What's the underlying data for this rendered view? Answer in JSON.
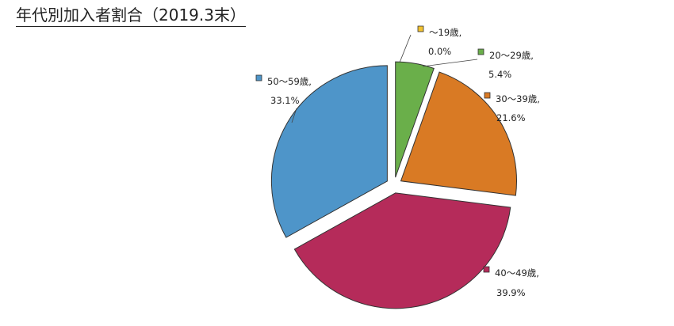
{
  "title": "年代別加入者割合（2019.3末）",
  "chart_data": {
    "type": "pie",
    "title": "年代別加入者割合（2019.3末）",
    "slices": [
      {
        "label": "～19歳",
        "value": 0.0,
        "value_label": "0.0%",
        "color": "#F2C230"
      },
      {
        "label": "20～29歳",
        "value": 5.4,
        "value_label": "5.4%",
        "color": "#6AAF4A"
      },
      {
        "label": "30～39歳",
        "value": 21.6,
        "value_label": "21.6%",
        "color": "#D97A24"
      },
      {
        "label": "40～49歳",
        "value": 39.9,
        "value_label": "39.9%",
        "color": "#B52B5A"
      },
      {
        "label": "50～59歳",
        "value": 33.1,
        "value_label": "33.1%",
        "color": "#4E95C9"
      }
    ]
  }
}
